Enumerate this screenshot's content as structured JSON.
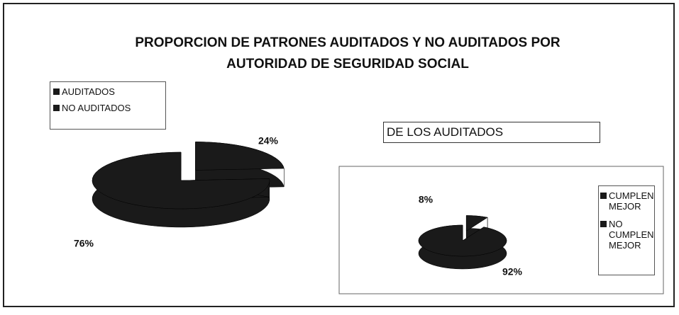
{
  "chart_data": [
    {
      "type": "pie",
      "title": "PROPORCION DE PATRONES AUDITADOS Y NO AUDITADOS POR AUTORIDAD DE SEGURIDAD SOCIAL",
      "categories": [
        "AUDITADOS",
        "NO AUDITADOS"
      ],
      "values": [
        24,
        76
      ],
      "value_labels": [
        "24%",
        "76%"
      ],
      "colors": [
        "#1a1a1a",
        "#1a1a1a"
      ],
      "legend": "top-left"
    },
    {
      "type": "pie",
      "title": "DE LOS AUDITADOS",
      "categories": [
        "CUMPLEN MEJOR",
        "NO CUMPLEN MEJOR"
      ],
      "values": [
        8,
        92
      ],
      "value_labels": [
        "8%",
        "92%"
      ],
      "colors": [
        "#1a1a1a",
        "#1a1a1a"
      ],
      "legend": "right"
    }
  ]
}
